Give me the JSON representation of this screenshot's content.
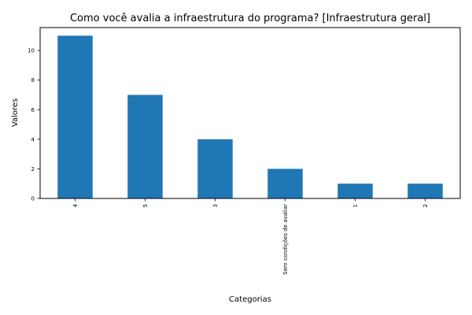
{
  "chart_data": {
    "type": "bar",
    "title": "Como você avalia a  infraestrutura do programa?  [Infraestrutura geral]",
    "xlabel": "Categorias",
    "ylabel": "Valores",
    "categories": [
      "4",
      "5",
      "3",
      "Sem condições de avaliar",
      "1",
      "2"
    ],
    "values": [
      11,
      7,
      4,
      2,
      1,
      1
    ],
    "ylim": [
      0,
      11.55
    ],
    "yticks": [
      0,
      2,
      4,
      6,
      8,
      10
    ],
    "grid": false,
    "colors": {
      "bar": "#1f77b4",
      "axis": "#000000",
      "background": "#ffffff"
    }
  }
}
